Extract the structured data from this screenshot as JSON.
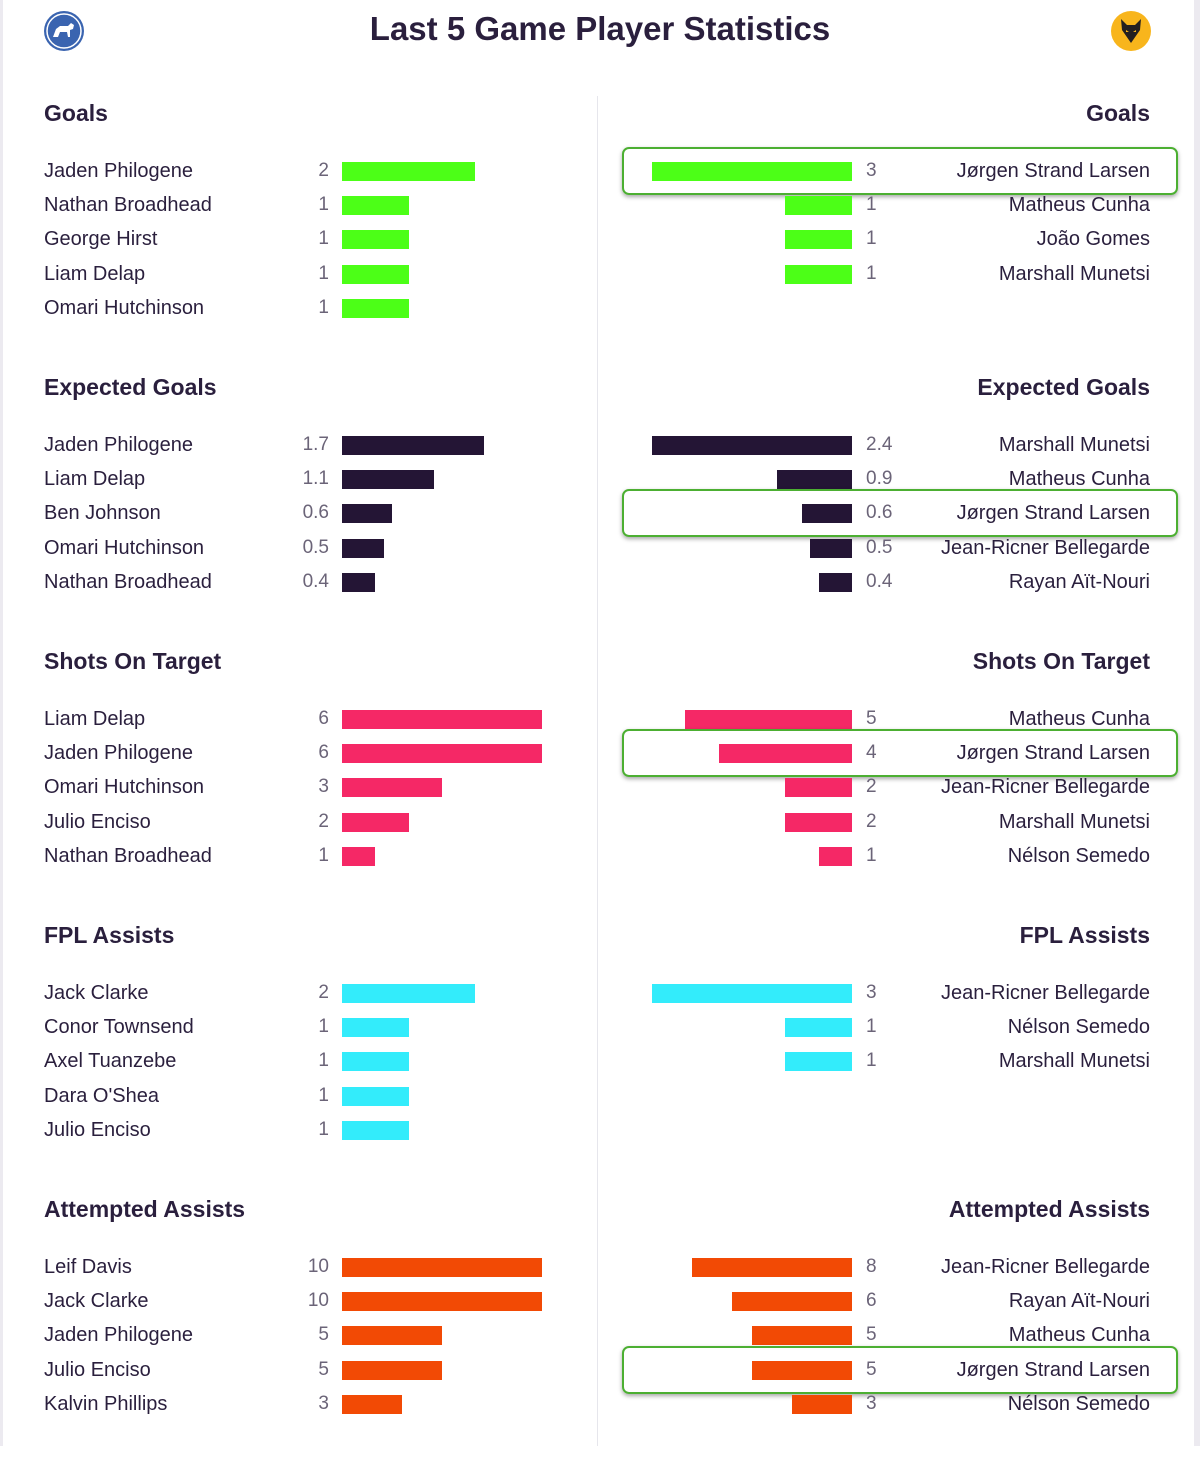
{
  "header": {
    "title": "Last 5 Game Player Statistics",
    "left_crest_icon": "horse-crest-icon",
    "right_crest_icon": "wolf-crest-icon"
  },
  "chart_data": [
    {
      "type": "bar",
      "title": "Goals",
      "color": "#4cff17",
      "max": 3,
      "left": [
        {
          "name": "Jaden Philogene",
          "label": "2",
          "value": 2
        },
        {
          "name": "Nathan Broadhead",
          "label": "1",
          "value": 1
        },
        {
          "name": "George Hirst",
          "label": "1",
          "value": 1
        },
        {
          "name": "Liam Delap",
          "label": "1",
          "value": 1
        },
        {
          "name": "Omari Hutchinson",
          "label": "1",
          "value": 1
        }
      ],
      "right": [
        {
          "name": "Jørgen Strand Larsen",
          "label": "3",
          "value": 3,
          "highlight": true
        },
        {
          "name": "Matheus Cunha",
          "label": "1",
          "value": 1
        },
        {
          "name": "João Gomes",
          "label": "1",
          "value": 1
        },
        {
          "name": "Marshall Munetsi",
          "label": "1",
          "value": 1
        }
      ]
    },
    {
      "type": "bar",
      "title": "Expected Goals",
      "color": "#241535",
      "max": 2.4,
      "left": [
        {
          "name": "Jaden Philogene",
          "label": "1.7",
          "value": 1.7
        },
        {
          "name": "Liam Delap",
          "label": "1.1",
          "value": 1.1
        },
        {
          "name": "Ben Johnson",
          "label": "0.6",
          "value": 0.6
        },
        {
          "name": "Omari Hutchinson",
          "label": "0.5",
          "value": 0.5
        },
        {
          "name": "Nathan Broadhead",
          "label": "0.4",
          "value": 0.4
        }
      ],
      "right": [
        {
          "name": "Marshall Munetsi",
          "label": "2.4",
          "value": 2.4
        },
        {
          "name": "Matheus Cunha",
          "label": "0.9",
          "value": 0.9
        },
        {
          "name": "Jørgen Strand Larsen",
          "label": "0.6",
          "value": 0.6,
          "highlight": true
        },
        {
          "name": "Jean-Ricner Bellegarde",
          "label": "0.5",
          "value": 0.5
        },
        {
          "name": "Rayan Aït-Nouri",
          "label": "0.4",
          "value": 0.4
        }
      ]
    },
    {
      "type": "bar",
      "title": "Shots On Target",
      "color": "#f52866",
      "max": 6,
      "left": [
        {
          "name": "Liam Delap",
          "label": "6",
          "value": 6
        },
        {
          "name": "Jaden Philogene",
          "label": "6",
          "value": 6
        },
        {
          "name": "Omari Hutchinson",
          "label": "3",
          "value": 3
        },
        {
          "name": "Julio Enciso",
          "label": "2",
          "value": 2
        },
        {
          "name": "Nathan Broadhead",
          "label": "1",
          "value": 1
        }
      ],
      "right": [
        {
          "name": "Matheus Cunha",
          "label": "5",
          "value": 5
        },
        {
          "name": "Jørgen Strand Larsen",
          "label": "4",
          "value": 4,
          "highlight": true
        },
        {
          "name": "Jean-Ricner Bellegarde",
          "label": "2",
          "value": 2
        },
        {
          "name": "Marshall Munetsi",
          "label": "2",
          "value": 2
        },
        {
          "name": "Nélson Semedo",
          "label": "1",
          "value": 1
        }
      ]
    },
    {
      "type": "bar",
      "title": "FPL Assists",
      "color": "#33ecfb",
      "max": 3,
      "left": [
        {
          "name": "Jack Clarke",
          "label": "2",
          "value": 2
        },
        {
          "name": "Conor Townsend",
          "label": "1",
          "value": 1
        },
        {
          "name": "Axel Tuanzebe",
          "label": "1",
          "value": 1
        },
        {
          "name": "Dara O'Shea",
          "label": "1",
          "value": 1
        },
        {
          "name": "Julio Enciso",
          "label": "1",
          "value": 1
        }
      ],
      "right": [
        {
          "name": "Jean-Ricner Bellegarde",
          "label": "3",
          "value": 3
        },
        {
          "name": "Nélson Semedo",
          "label": "1",
          "value": 1
        },
        {
          "name": "Marshall Munetsi",
          "label": "1",
          "value": 1
        }
      ]
    },
    {
      "type": "bar",
      "title": "Attempted Assists",
      "color": "#f24a05",
      "max": 10,
      "left": [
        {
          "name": "Leif Davis",
          "label": "10",
          "value": 10
        },
        {
          "name": "Jack Clarke",
          "label": "10",
          "value": 10
        },
        {
          "name": "Jaden Philogene",
          "label": "5",
          "value": 5
        },
        {
          "name": "Julio Enciso",
          "label": "5",
          "value": 5
        },
        {
          "name": "Kalvin Phillips",
          "label": "3",
          "value": 3
        }
      ],
      "right": [
        {
          "name": "Jean-Ricner Bellegarde",
          "label": "8",
          "value": 8
        },
        {
          "name": "Rayan Aït-Nouri",
          "label": "6",
          "value": 6
        },
        {
          "name": "Matheus Cunha",
          "label": "5",
          "value": 5
        },
        {
          "name": "Jørgen Strand Larsen",
          "label": "5",
          "value": 5,
          "highlight": true
        },
        {
          "name": "Nélson Semedo",
          "label": "3",
          "value": 3
        }
      ]
    }
  ]
}
